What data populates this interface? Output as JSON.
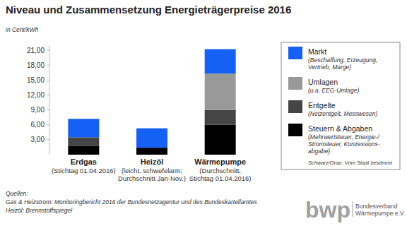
{
  "chart_data": {
    "type": "bar",
    "stacked": true,
    "title": "Niveau und Zusammensetzung Energieträgerpreise 2016",
    "subtitle": "in Cent/kWh",
    "categories": [
      "Erdgas",
      "Heizöl",
      "Wärmepumpe"
    ],
    "category_notes": [
      [
        "(Stichtag 01.04.2016)"
      ],
      [
        "(leicht. schwefelarm;",
        "Durchschnitt Jan-Nov.)"
      ],
      [
        "(Durchschnitt,",
        "Stichtag 01.04.2016)"
      ]
    ],
    "series": [
      {
        "name": "Steuern & Abgaben",
        "description": [
          "(Mehrwertsteuer, Energie-/",
          "Stromsteuer, Konzessions-",
          "abgabe)"
        ],
        "color": "#000000",
        "values": [
          1.8,
          1.4,
          6.0
        ]
      },
      {
        "name": "Entgelte",
        "description": [
          "(Netzentgelt, Messwesen)"
        ],
        "color": "#454545",
        "values": [
          1.7,
          0,
          3.0
        ]
      },
      {
        "name": "Umlagen",
        "description": [
          "(u.a. EEG-Umlage)"
        ],
        "color": "#999999",
        "values": [
          0,
          0,
          7.3
        ]
      },
      {
        "name": "Markt",
        "description": [
          "(Beschaffung, Erzeugung,",
          "Vertrieb, Marge)"
        ],
        "color": "#1560f5",
        "values": [
          3.7,
          3.9,
          4.9
        ]
      }
    ],
    "ylim": [
      0,
      22
    ],
    "yticks": [
      {
        "value": 3,
        "label": "3,00"
      },
      {
        "value": 6,
        "label": "6,00"
      },
      {
        "value": 9,
        "label": "9,00"
      },
      {
        "value": 12,
        "label": "12,00"
      },
      {
        "value": 15,
        "label": "15,00"
      },
      {
        "value": 18,
        "label": "18,00"
      },
      {
        "value": 21,
        "label": "21,00"
      }
    ],
    "grid": false,
    "legend": "right",
    "legend_note": "Schwarz/Grau: Vom Staat bestimmt",
    "sources": [
      "Quellen:",
      "Gas & Heizstrom: Monitoringbericht 2016 der Bundesnetzagentur und des Bundeskartellamtes",
      "Heizöl: Brennstoffspiegel"
    ],
    "logo": {
      "text": "bwp",
      "lines": [
        "Bundesverband",
        "Wärmepumpe e.V."
      ]
    }
  }
}
